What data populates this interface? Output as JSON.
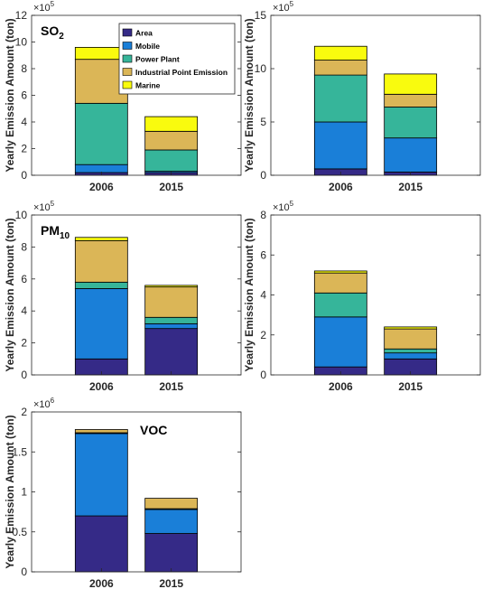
{
  "colors": {
    "Area": "#352a87",
    "Mobile": "#1a7fd8",
    "Power Plant": "#36b59a",
    "Industrial Point Emission": "#dbb657",
    "Marine": "#f9fb0e"
  },
  "legend": {
    "placement": "inside-top-right of first panel",
    "entries": [
      "Area",
      "Mobile",
      "Power Plant",
      "Industrial Point Emission",
      "Marine"
    ]
  },
  "y_axis_label": "Yearly Emission Amount (ton)",
  "chart_data": [
    {
      "type": "bar",
      "stacked": true,
      "title": "SO",
      "title_subscript": "2",
      "exponent_label": "×10",
      "exponent_power": "5",
      "ylabel": "Yearly Emission Amount (ton)",
      "ylim": [
        0,
        12
      ],
      "yticks": [
        0,
        2,
        4,
        6,
        8,
        10,
        12
      ],
      "categories": [
        "2006",
        "2015"
      ],
      "series": [
        {
          "name": "Area",
          "values": [
            0.2,
            0.2
          ]
        },
        {
          "name": "Mobile",
          "values": [
            0.6,
            0.1
          ]
        },
        {
          "name": "Power Plant",
          "values": [
            4.6,
            1.6
          ]
        },
        {
          "name": "Industrial Point Emission",
          "values": [
            3.3,
            1.4
          ]
        },
        {
          "name": "Marine",
          "values": [
            0.9,
            1.1
          ]
        }
      ]
    },
    {
      "type": "bar",
      "stacked": true,
      "title": "",
      "exponent_label": "×10",
      "exponent_power": "5",
      "ylabel": "Yearly Emission Amount (ton)",
      "ylim": [
        0,
        15
      ],
      "yticks": [
        0,
        5,
        10,
        15
      ],
      "categories": [
        "2006",
        "2015"
      ],
      "series": [
        {
          "name": "Area",
          "values": [
            0.6,
            0.3
          ]
        },
        {
          "name": "Mobile",
          "values": [
            4.4,
            3.2
          ]
        },
        {
          "name": "Power Plant",
          "values": [
            4.4,
            2.9
          ]
        },
        {
          "name": "Industrial Point Emission",
          "values": [
            1.4,
            1.2
          ]
        },
        {
          "name": "Marine",
          "values": [
            1.3,
            1.9
          ]
        }
      ]
    },
    {
      "type": "bar",
      "stacked": true,
      "title": "PM",
      "title_subscript": "10",
      "exponent_label": "×10",
      "exponent_power": "5",
      "ylabel": "Yearly Emission Amount (ton)",
      "ylim": [
        0,
        10
      ],
      "yticks": [
        0,
        2,
        4,
        6,
        8,
        10
      ],
      "categories": [
        "2006",
        "2015"
      ],
      "series": [
        {
          "name": "Area",
          "values": [
            1.0,
            2.9
          ]
        },
        {
          "name": "Mobile",
          "values": [
            4.4,
            0.3
          ]
        },
        {
          "name": "Power Plant",
          "values": [
            0.4,
            0.4
          ]
        },
        {
          "name": "Industrial Point Emission",
          "values": [
            2.6,
            1.9
          ]
        },
        {
          "name": "Marine",
          "values": [
            0.2,
            0.1
          ]
        }
      ]
    },
    {
      "type": "bar",
      "stacked": true,
      "title": "",
      "exponent_label": "×10",
      "exponent_power": "5",
      "ylabel": "Yearly Emission Amount (ton)",
      "ylim": [
        0,
        8
      ],
      "yticks": [
        0,
        2,
        4,
        6,
        8
      ],
      "categories": [
        "2006",
        "2015"
      ],
      "series": [
        {
          "name": "Area",
          "values": [
            0.4,
            0.8
          ]
        },
        {
          "name": "Mobile",
          "values": [
            2.5,
            0.3
          ]
        },
        {
          "name": "Power Plant",
          "values": [
            1.2,
            0.2
          ]
        },
        {
          "name": "Industrial Point Emission",
          "values": [
            1.0,
            1.0
          ]
        },
        {
          "name": "Marine",
          "values": [
            0.1,
            0.1
          ]
        }
      ]
    },
    {
      "type": "bar",
      "stacked": true,
      "title": "VOC",
      "exponent_label": "×10",
      "exponent_power": "6",
      "ylabel": "Yearly Emission Amount (ton)",
      "ylim": [
        0,
        2
      ],
      "yticks": [
        0,
        0.5,
        1,
        1.5,
        2
      ],
      "categories": [
        "2006",
        "2015"
      ],
      "series": [
        {
          "name": "Area",
          "values": [
            0.7,
            0.48
          ]
        },
        {
          "name": "Mobile",
          "values": [
            1.03,
            0.3
          ]
        },
        {
          "name": "Power Plant",
          "values": [
            0.01,
            0.01
          ]
        },
        {
          "name": "Industrial Point Emission",
          "values": [
            0.04,
            0.13
          ]
        },
        {
          "name": "Marine",
          "values": [
            0.0,
            0.0
          ]
        }
      ]
    }
  ]
}
